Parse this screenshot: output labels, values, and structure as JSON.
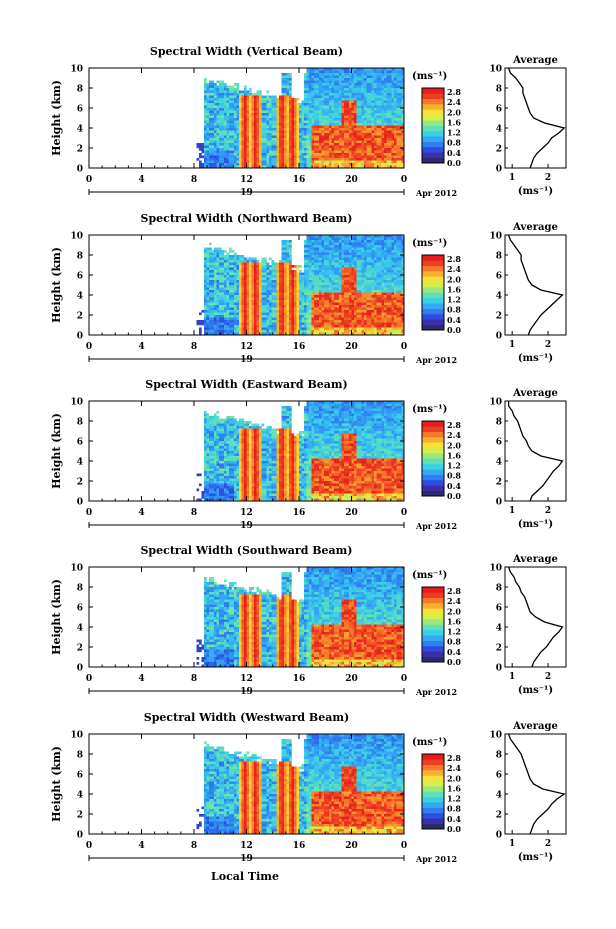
{
  "figure": {
    "xlabel": "Local Time",
    "date_label": "Apr 2012",
    "day_label": "19",
    "unit_label": "(ms⁻¹)",
    "avg_title": "Average",
    "avg_xlabel": "(ms⁻¹)",
    "ylabel": "Height (km)"
  },
  "colorbar": {
    "ticks": [
      "2.8",
      "2.4",
      "2.0",
      "1.6",
      "1.2",
      "0.8",
      "0.4",
      "0.0"
    ],
    "colors": [
      "#2c2a6e",
      "#3a2fa8",
      "#2d4fe0",
      "#2f7ff0",
      "#33a8f4",
      "#3cd0e6",
      "#5fe0b8",
      "#9ae87c",
      "#d6ee4a",
      "#f8e23a",
      "#f8b032",
      "#f67a2a",
      "#ee3e22",
      "#e41e1e"
    ]
  },
  "chart_data": [
    {
      "type": "heatmap",
      "title": "Spectral Width (Vertical Beam)",
      "x_ticks": [
        "0",
        "4",
        "8",
        "12",
        "16",
        "20",
        "0"
      ],
      "xlim": [
        0,
        24
      ],
      "ylim": [
        0,
        10
      ],
      "y_ticks": [
        "0",
        "2",
        "4",
        "6",
        "8",
        "10"
      ],
      "zlim": [
        0.0,
        2.8
      ],
      "average": {
        "xlim": [
          0.8,
          2.5
        ],
        "x_ticks": [
          "1",
          "2"
        ],
        "height_km": [
          0,
          0.5,
          1,
          1.5,
          2,
          2.5,
          3,
          3.5,
          4,
          4.5,
          5,
          5.5,
          6,
          6.5,
          7,
          7.5,
          8,
          8.5,
          9,
          9.5,
          10
        ],
        "width_ms": [
          1.5,
          1.55,
          1.6,
          1.7,
          1.85,
          2.0,
          2.1,
          2.3,
          2.45,
          1.9,
          1.6,
          1.5,
          1.45,
          1.4,
          1.35,
          1.3,
          1.3,
          1.2,
          1.1,
          0.95,
          0.9
        ]
      }
    },
    {
      "type": "heatmap",
      "title": "Spectral Width (Northward Beam)",
      "x_ticks": [
        "0",
        "4",
        "8",
        "12",
        "16",
        "20",
        "0"
      ],
      "xlim": [
        0,
        24
      ],
      "ylim": [
        0,
        10
      ],
      "y_ticks": [
        "0",
        "2",
        "4",
        "6",
        "8",
        "10"
      ],
      "zlim": [
        0.0,
        2.8
      ],
      "average": {
        "xlim": [
          0.8,
          2.5
        ],
        "x_ticks": [
          "1",
          "2"
        ],
        "height_km": [
          0,
          0.5,
          1,
          1.5,
          2,
          2.5,
          3,
          3.5,
          4,
          4.5,
          5,
          5.5,
          6,
          6.5,
          7,
          7.5,
          8,
          8.5,
          9,
          9.5,
          10
        ],
        "width_ms": [
          1.45,
          1.5,
          1.6,
          1.7,
          1.8,
          1.95,
          2.1,
          2.25,
          2.4,
          1.8,
          1.55,
          1.45,
          1.4,
          1.35,
          1.3,
          1.25,
          1.25,
          1.15,
          1.05,
          0.95,
          0.9
        ]
      }
    },
    {
      "type": "heatmap",
      "title": "Spectral Width (Eastward Beam)",
      "x_ticks": [
        "0",
        "4",
        "8",
        "12",
        "16",
        "20",
        "0"
      ],
      "xlim": [
        0,
        24
      ],
      "ylim": [
        0,
        10
      ],
      "y_ticks": [
        "0",
        "2",
        "4",
        "6",
        "8",
        "10"
      ],
      "zlim": [
        0.0,
        2.8
      ],
      "average": {
        "xlim": [
          0.8,
          2.5
        ],
        "x_ticks": [
          "1",
          "2"
        ],
        "height_km": [
          0,
          0.5,
          1,
          1.5,
          2,
          2.5,
          3,
          3.5,
          4,
          4.5,
          5,
          5.5,
          6,
          6.5,
          7,
          7.5,
          8,
          8.5,
          9,
          9.5,
          10
        ],
        "width_ms": [
          1.5,
          1.55,
          1.7,
          1.85,
          1.95,
          2.05,
          2.15,
          2.3,
          2.4,
          1.8,
          1.55,
          1.45,
          1.4,
          1.3,
          1.25,
          1.2,
          1.15,
          1.05,
          1.0,
          0.9,
          0.9
        ]
      }
    },
    {
      "type": "heatmap",
      "title": "Spectral Width (Southward Beam)",
      "x_ticks": [
        "0",
        "4",
        "8",
        "12",
        "16",
        "20",
        "0"
      ],
      "xlim": [
        0,
        24
      ],
      "ylim": [
        0,
        10
      ],
      "y_ticks": [
        "0",
        "2",
        "4",
        "6",
        "8",
        "10"
      ],
      "zlim": [
        0.0,
        2.8
      ],
      "average": {
        "xlim": [
          0.8,
          2.5
        ],
        "x_ticks": [
          "1",
          "2"
        ],
        "height_km": [
          0,
          0.5,
          1,
          1.5,
          2,
          2.5,
          3,
          3.5,
          4,
          4.5,
          5,
          5.5,
          6,
          6.5,
          7,
          7.5,
          8,
          8.5,
          9,
          9.5,
          10
        ],
        "width_ms": [
          1.55,
          1.6,
          1.7,
          1.8,
          1.95,
          2.05,
          2.15,
          2.3,
          2.4,
          1.9,
          1.65,
          1.5,
          1.45,
          1.4,
          1.35,
          1.25,
          1.2,
          1.1,
          1.05,
          0.95,
          0.9
        ]
      }
    },
    {
      "type": "heatmap",
      "title": "Spectral Width (Westward Beam)",
      "x_ticks": [
        "0",
        "4",
        "8",
        "12",
        "16",
        "20",
        "0"
      ],
      "xlim": [
        0,
        24
      ],
      "ylim": [
        0,
        10
      ],
      "y_ticks": [
        "0",
        "2",
        "4",
        "6",
        "8",
        "10"
      ],
      "zlim": [
        0.0,
        2.8
      ],
      "average": {
        "xlim": [
          0.8,
          2.5
        ],
        "x_ticks": [
          "1",
          "2"
        ],
        "height_km": [
          0,
          0.5,
          1,
          1.5,
          2,
          2.5,
          3,
          3.5,
          4,
          4.5,
          5,
          5.5,
          6,
          6.5,
          7,
          7.5,
          8,
          8.5,
          9,
          9.5,
          10
        ],
        "width_ms": [
          1.5,
          1.55,
          1.6,
          1.7,
          1.85,
          2.0,
          2.1,
          2.25,
          2.45,
          1.85,
          1.6,
          1.5,
          1.45,
          1.4,
          1.35,
          1.3,
          1.25,
          1.15,
          1.05,
          0.95,
          0.9
        ]
      }
    }
  ]
}
